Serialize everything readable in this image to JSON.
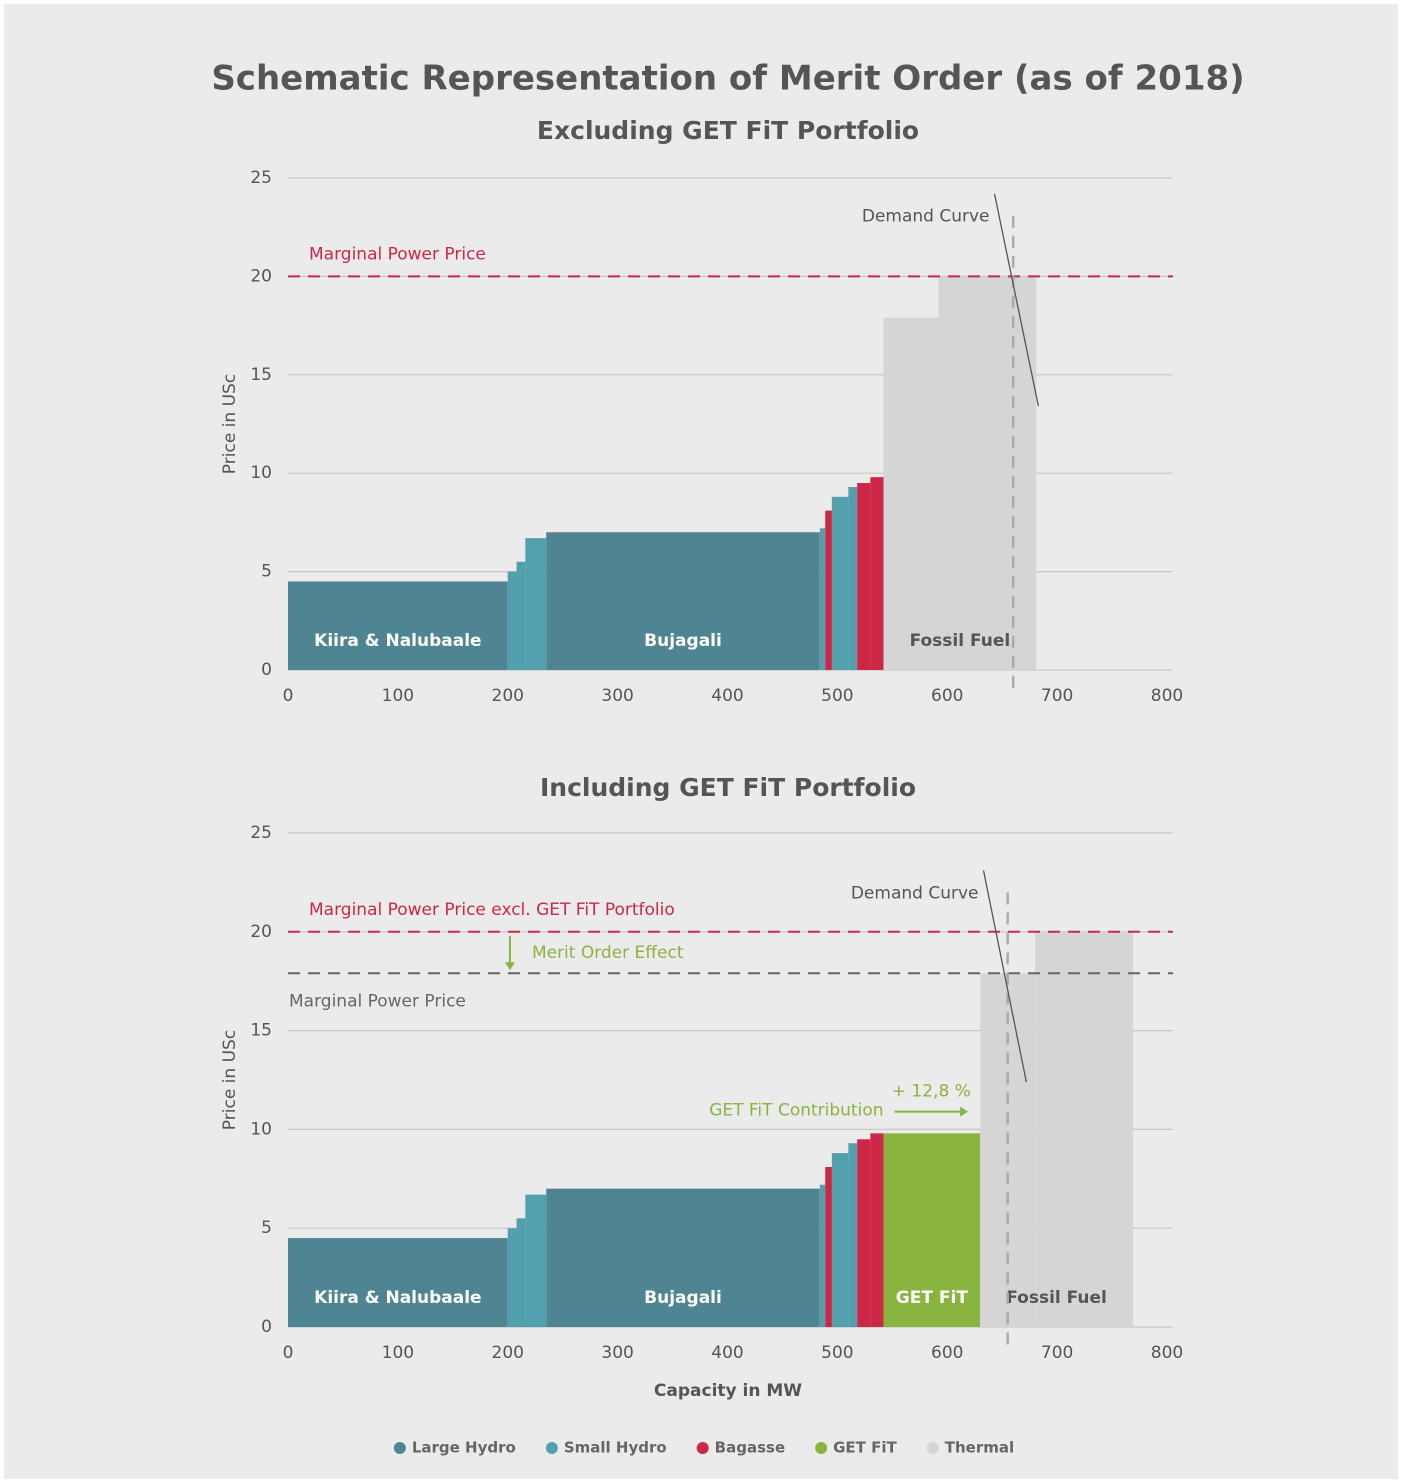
{
  "title": "Schematic Representation of Merit Order (as of 2018)",
  "chart_data": [
    {
      "type": "merit_order",
      "title": "Excluding GET FiT Portfolio",
      "ylabel": "Price in USc",
      "xlim": [
        0,
        800
      ],
      "xticks": [
        0,
        100,
        200,
        300,
        400,
        500,
        600,
        700,
        800
      ],
      "ylim": [
        0,
        25
      ],
      "yticks": [
        0,
        5,
        10,
        15,
        20,
        25
      ],
      "grid": true,
      "series": [
        {
          "name": "Large Hydro",
          "color": "#4f8492",
          "x0": [
            0,
            235
          ],
          "x1": [
            200,
            484
          ],
          "values": [
            4.5,
            7.0
          ],
          "labels": [
            "Kiira & Nalubaale",
            "Bujagali"
          ]
        },
        {
          "name": "Small Hydro",
          "color": "#52a0ae",
          "x0": [
            200,
            208,
            216,
            484,
            495,
            510
          ],
          "x1": [
            208,
            216,
            235,
            489,
            510,
            518
          ],
          "values": [
            5.0,
            5.5,
            6.7,
            7.2,
            8.8,
            9.3
          ]
        },
        {
          "name": "Bagasse",
          "color": "#cc2846",
          "x0": [
            489,
            518,
            530
          ],
          "x1": [
            495,
            530,
            542
          ],
          "values": [
            8.1,
            9.5,
            9.8
          ]
        },
        {
          "name": "Thermal",
          "color": "#d4d5d4",
          "x0": [
            542,
            592
          ],
          "x1": [
            592,
            681
          ],
          "values": [
            17.9,
            20
          ],
          "labels": [
            "Fossil Fuel",
            null
          ]
        }
      ],
      "reference_lines": [
        {
          "label": "Marginal Power Price",
          "value": 20,
          "color": "#cc2846"
        }
      ],
      "demand_curve": {
        "label": "Demand Curve",
        "x": [
          643,
          683
        ],
        "y": [
          24.2,
          13.4
        ],
        "demand": 660
      }
    },
    {
      "type": "merit_order",
      "title": "Including GET FiT Portfolio",
      "ylabel": "Price in USc",
      "xlabel": "Capacity in MW",
      "xlim": [
        0,
        800
      ],
      "xticks": [
        0,
        100,
        200,
        300,
        400,
        500,
        600,
        700,
        800
      ],
      "ylim": [
        0,
        25
      ],
      "yticks": [
        0,
        5,
        10,
        15,
        20,
        25
      ],
      "grid": true,
      "series": [
        {
          "name": "Large Hydro",
          "color": "#4f8492",
          "x0": [
            0,
            235
          ],
          "x1": [
            200,
            484
          ],
          "values": [
            4.5,
            7.0
          ],
          "labels": [
            "Kiira & Nalubaale",
            "Bujagali"
          ]
        },
        {
          "name": "Small Hydro",
          "color": "#52a0ae",
          "x0": [
            200,
            208,
            216,
            484,
            495,
            510
          ],
          "x1": [
            208,
            216,
            235,
            489,
            510,
            518
          ],
          "values": [
            5.0,
            5.5,
            6.7,
            7.2,
            8.8,
            9.3
          ]
        },
        {
          "name": "Bagasse",
          "color": "#cc2846",
          "x0": [
            489,
            518,
            530
          ],
          "x1": [
            495,
            530,
            542
          ],
          "values": [
            8.1,
            9.5,
            9.8
          ]
        },
        {
          "name": "GET FiT",
          "color": "#8ab440",
          "x0": [
            542
          ],
          "x1": [
            630
          ],
          "values": [
            9.8
          ],
          "labels": [
            "GET FiT"
          ]
        },
        {
          "name": "Thermal",
          "color": "#d4d5d4",
          "x0": [
            630,
            680
          ],
          "x1": [
            680,
            769
          ],
          "values": [
            17.9,
            20
          ],
          "labels": [
            "Fossil Fuel",
            null
          ]
        }
      ],
      "reference_lines": [
        {
          "label": "Marginal Power Price excl. GET FiT Portfolio",
          "value": 20,
          "color": "#cc2846"
        },
        {
          "label": "Marginal Power Price",
          "value": 17.9,
          "color": "#666666"
        }
      ],
      "demand_curve": {
        "label": "Demand Curve",
        "x": [
          633,
          672
        ],
        "y": [
          23.1,
          12.4
        ],
        "demand": 655
      },
      "merit_order_effect": {
        "text": "Merit Order Effect",
        "x": 202,
        "from": 20,
        "to": 17.9,
        "color": "#8ab440"
      },
      "contribution": {
        "text": "GET FiT Contribution",
        "value": 12.8,
        "label": "+ 12,8 %",
        "x": [
          552,
          619
        ],
        "y": 10.9,
        "color": "#8ab440"
      }
    }
  ]
}
